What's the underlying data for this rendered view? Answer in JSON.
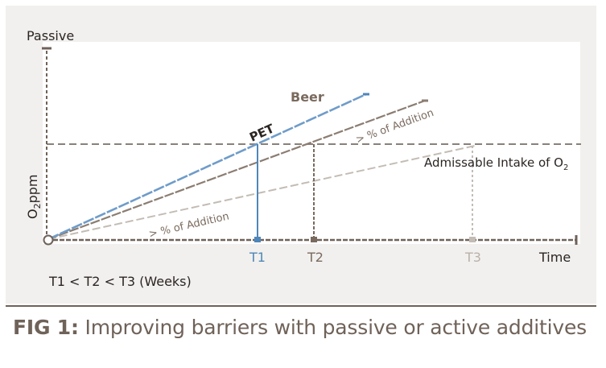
{
  "caption": {
    "label": "FIG 1:",
    "text": "Improving barriers with passive or active additives"
  },
  "chart_data": {
    "type": "line",
    "title": "",
    "ylabel_top": "Passive",
    "ylabel": "O2ppm",
    "xlabel": "Time",
    "footnote": "T1 < T2 < T3 (Weeks)",
    "x_ticks": [
      {
        "label": "T1",
        "color": "#4f86b8"
      },
      {
        "label": "T2",
        "color": "#7a6a5e"
      },
      {
        "label": "T3",
        "color": "#b9b1a8"
      }
    ],
    "threshold": {
      "label": "Admissable Intake of O2",
      "label_main": "Admissable Intake of O",
      "label_sub": "2"
    },
    "series": [
      {
        "name": "PET",
        "color": "#6f9cc9"
      },
      {
        "name": "Beer",
        "color": "#8b7d72"
      },
      {
        "name": "> % of Addition",
        "color": "#b9b1a8"
      }
    ],
    "annotations": [
      {
        "text": "> % of Addition",
        "series": "Beer"
      },
      {
        "text": "> % of Addition",
        "series": "lower"
      }
    ],
    "grid": false
  }
}
